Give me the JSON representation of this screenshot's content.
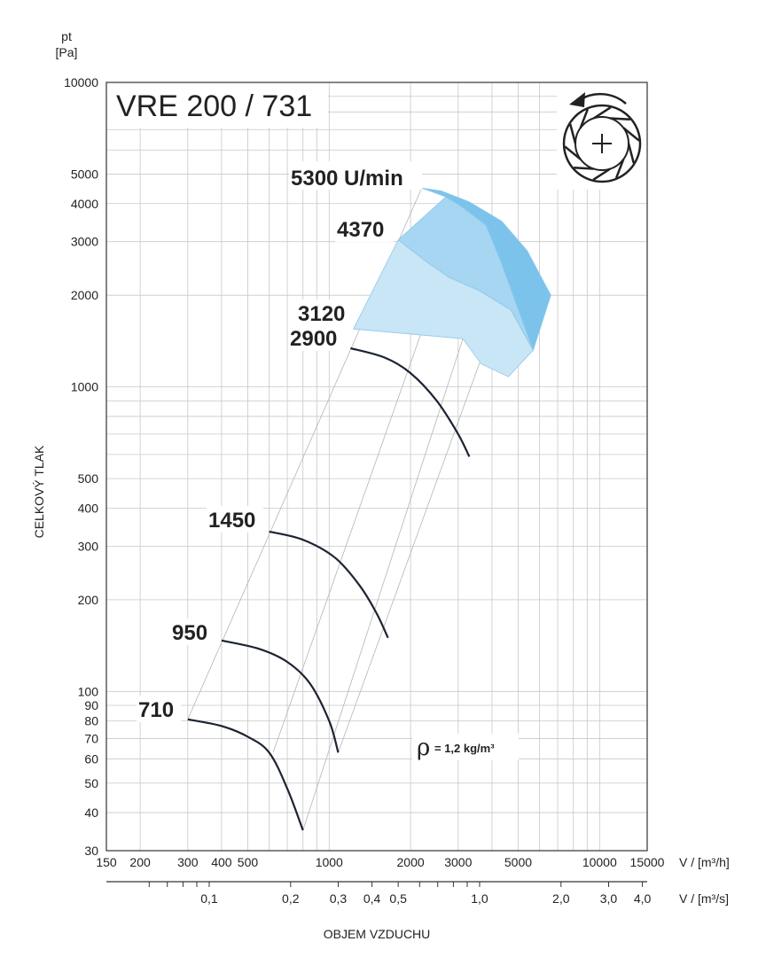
{
  "chart_data": {
    "type": "line",
    "title": "VRE 200 / 731",
    "ylabel": "CELKOVÝ TLAK",
    "yunit_top": "pt",
    "yunit_bottom": "[Pa]",
    "xlabel": "OBJEM VZDUCHU",
    "xunit_m3h": "V / [m³/h]",
    "xunit_m3s": "V / [m³/s]",
    "x_scale": "log",
    "y_scale": "log",
    "xlim_m3h": [
      150,
      15000
    ],
    "ylim_pa": [
      30,
      10000
    ],
    "grid": true,
    "x_ticks_m3h": [
      150,
      200,
      300,
      400,
      500,
      1000,
      2000,
      3000,
      5000,
      10000,
      15000
    ],
    "x_tick_labels_m3h": [
      "150",
      "200",
      "300",
      "400",
      "500",
      "1000",
      "2000",
      "3000",
      "5000",
      "10000",
      "15000"
    ],
    "x_ticks_m3s": [
      0.1,
      0.2,
      0.3,
      0.4,
      0.5,
      1.0,
      2.0,
      3.0,
      4.0
    ],
    "x_tick_labels_m3s": [
      "0,1",
      "0,2",
      "0,3",
      "0,4",
      "0,5",
      "1,0",
      "2,0",
      "3,0",
      "4,0"
    ],
    "y_ticks": [
      30,
      40,
      50,
      60,
      70,
      80,
      90,
      100,
      200,
      300,
      400,
      500,
      1000,
      2000,
      3000,
      4000,
      5000,
      10000
    ],
    "y_tick_labels": [
      "30",
      "40",
      "50",
      "60",
      "70",
      "80",
      "90",
      "100",
      "200",
      "300",
      "400",
      "500",
      "1000",
      "2000",
      "3000",
      "4000",
      "5000",
      "10000"
    ],
    "density_symbol": "ρ",
    "density_text": "= 1,2 kg/m³",
    "series": [
      {
        "name": "710",
        "x": [
          300,
          400,
          500,
          600,
          700,
          800
        ],
        "y": [
          81,
          77,
          71,
          63,
          48,
          35
        ]
      },
      {
        "name": "950",
        "x": [
          400,
          550,
          700,
          850,
          1000,
          1080
        ],
        "y": [
          147,
          138,
          125,
          106,
          80,
          63
        ]
      },
      {
        "name": "1450",
        "x": [
          600,
          800,
          1050,
          1300,
          1500,
          1650
        ],
        "y": [
          335,
          315,
          275,
          222,
          180,
          150
        ]
      },
      {
        "name": "2900",
        "x": [
          1200,
          1600,
          2000,
          2500,
          3000,
          3300
        ],
        "y": [
          1340,
          1250,
          1110,
          900,
          700,
          590
        ]
      }
    ],
    "shaded_regions": [
      {
        "name": "3120",
        "color": "#c9e6f6",
        "x": [
          1230,
          3120,
          3650,
          4600,
          5680,
          4700,
          3600,
          2800,
          2300,
          1800
        ],
        "y": [
          1550,
          1440,
          1190,
          1080,
          1320,
          1790,
          2070,
          2280,
          2570,
          3040
        ]
      },
      {
        "name": "4370",
        "color": "#a6d6f2",
        "x": [
          1800,
          2300,
          2800,
          3600,
          4700,
          5680,
          4300,
          3800,
          3100,
          2700
        ],
        "y": [
          3040,
          2570,
          2280,
          2070,
          1790,
          1320,
          2600,
          3400,
          3900,
          4210
        ]
      },
      {
        "name": "5300 U/min",
        "color": "#7cc3ec",
        "x": [
          2200,
          2700,
          3100,
          3800,
          4300,
          5680,
          6600,
          5400,
          4350,
          3300,
          2600
        ],
        "y": [
          4500,
          4210,
          3900,
          3400,
          2600,
          1320,
          2000,
          2800,
          3500,
          4050,
          4400
        ]
      }
    ],
    "speed_labels": [
      "5300 U/min",
      "4370",
      "3120",
      "2900",
      "1450",
      "950",
      "710"
    ],
    "rotation_arrow": "counter-clockwise"
  },
  "icons": {
    "impeller": "fan-impeller-icon",
    "rotation": "rotation-arrow-icon"
  }
}
